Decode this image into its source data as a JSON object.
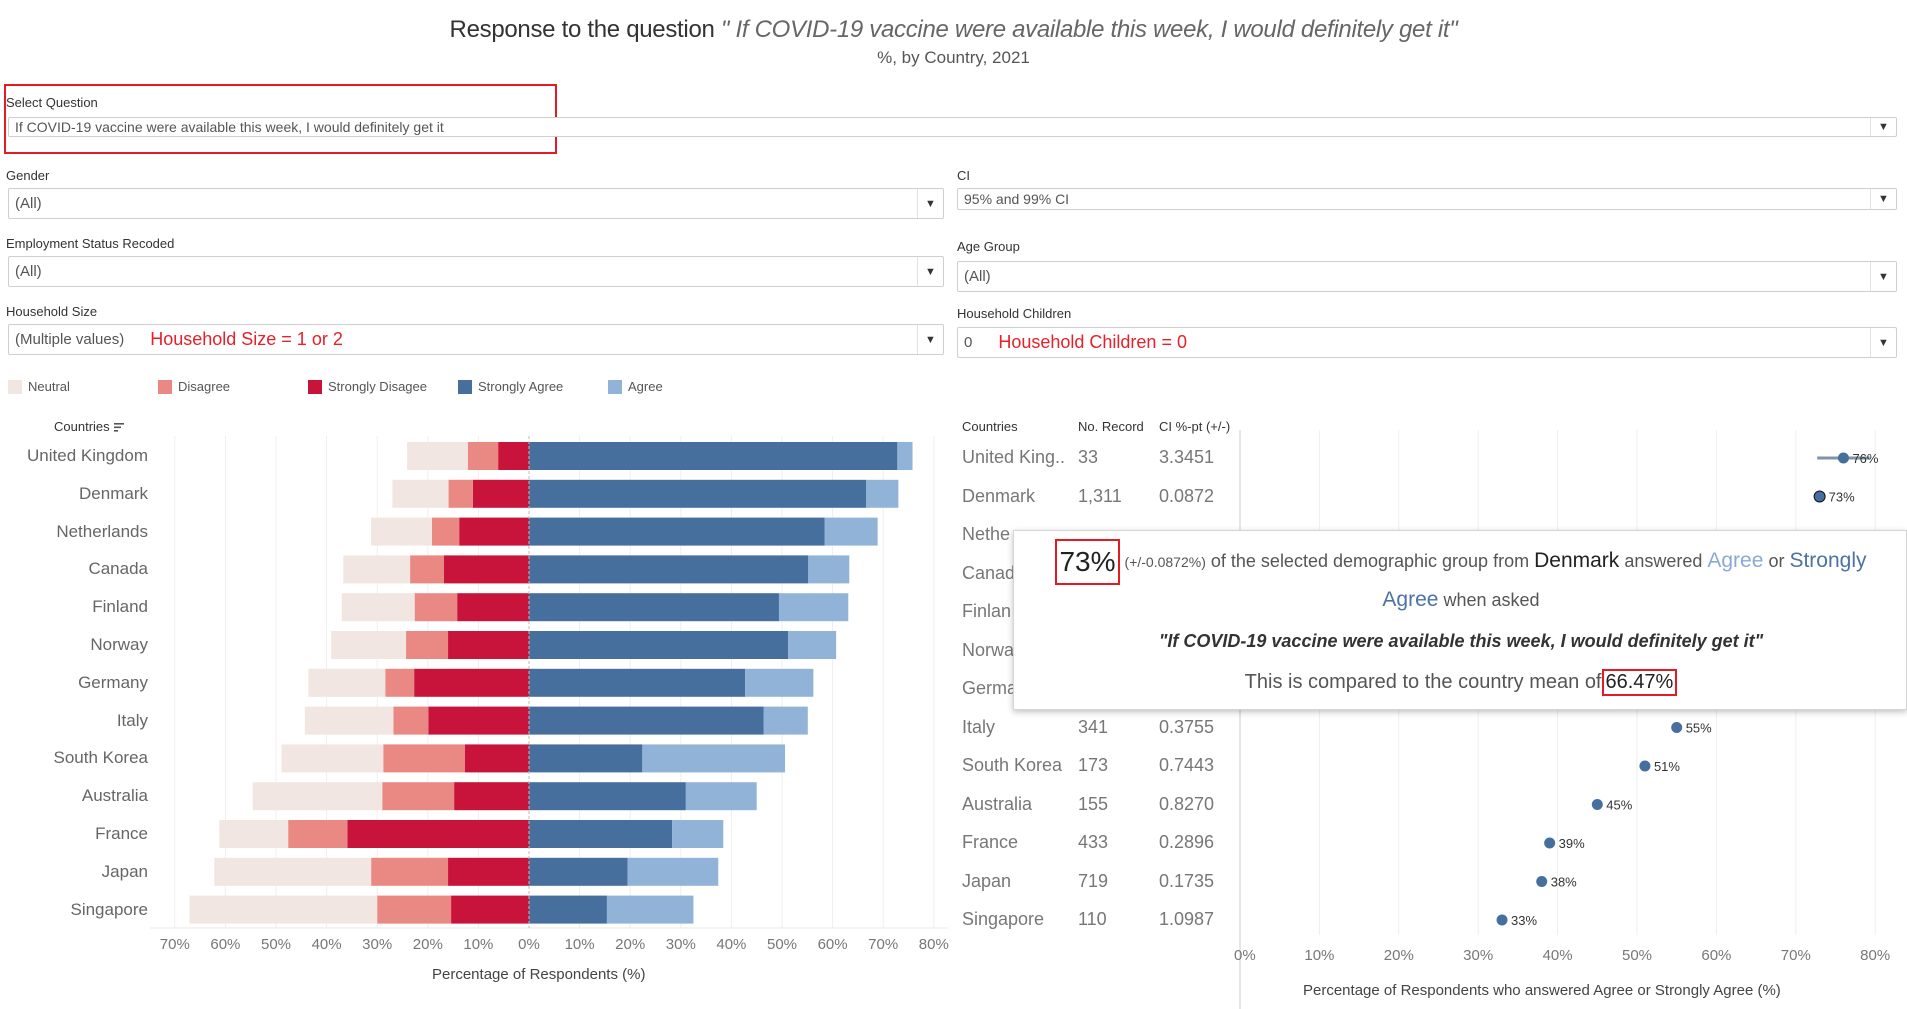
{
  "header": {
    "title_prefix": "Response to the question",
    "title_question": "\" If COVID-19 vaccine were available this week, I would definitely get it\"",
    "subtitle": "%, by Country, 2021"
  },
  "filters": {
    "select_question": {
      "label": "Select Question",
      "value": "If COVID-19 vaccine were available this week, I would definitely get it"
    },
    "gender": {
      "label": "Gender",
      "value": "(All)"
    },
    "ci": {
      "label": "CI",
      "value": "95% and 99% CI"
    },
    "employment": {
      "label": "Employment Status Recoded",
      "value": "(All)"
    },
    "age_group": {
      "label": "Age Group",
      "value": "(All)"
    },
    "household_size": {
      "label": "Household Size",
      "value": "(Multiple values)",
      "annotation": "Household Size = 1 or 2"
    },
    "household_children": {
      "label": "Household Children",
      "value": "0",
      "annotation": "Household Children = 0"
    },
    "dropdown_icon": "caret-down"
  },
  "legend": [
    {
      "label": "Neutral",
      "color": "#f1e6e2"
    },
    {
      "label": "Disagree",
      "color": "#ea8883"
    },
    {
      "label": "Strongly Disagee",
      "color": "#c8143a"
    },
    {
      "label": "Strongly Agree",
      "color": "#466f9d"
    },
    {
      "label": "Agree",
      "color": "#92b3d8"
    }
  ],
  "colors": {
    "accent_red": "#e21b24",
    "dot": "#466f9d",
    "agree_text": "#8aaad6",
    "strongly_agree_text": "#4c72a6"
  },
  "chart_data": [
    {
      "type": "bar",
      "subtype": "diverging-stacked",
      "title": "",
      "row_header": "Countries",
      "xlabel": "Percentage of Respondents (%)",
      "ylabel": "",
      "xlim": [
        -70,
        80
      ],
      "x_ticks": [
        "70%",
        "60%",
        "50%",
        "40%",
        "30%",
        "20%",
        "10%",
        "0%",
        "10%",
        "20%",
        "30%",
        "40%",
        "50%",
        "60%",
        "70%",
        "80%"
      ],
      "grid": true,
      "legend_position": "top-left",
      "categories": [
        "United Kingdom",
        "Denmark",
        "Netherlands",
        "Canada",
        "Finland",
        "Norway",
        "Germany",
        "Italy",
        "South Korea",
        "Australia",
        "France",
        "Japan",
        "Singapore"
      ],
      "series": [
        {
          "name": "Strongly Disagee",
          "side": "negative",
          "values": [
            6.1,
            11.1,
            13.8,
            16.8,
            14.2,
            16.0,
            22.7,
            19.9,
            12.7,
            14.8,
            35.9,
            16.0,
            15.4
          ]
        },
        {
          "name": "Disagree",
          "side": "negative",
          "values": [
            6.0,
            4.8,
            5.4,
            6.7,
            8.4,
            8.3,
            5.7,
            6.9,
            16.1,
            14.2,
            11.7,
            15.2,
            14.6
          ]
        },
        {
          "name": "Neutral",
          "side": "negative",
          "values": [
            12.0,
            11.1,
            12.0,
            13.2,
            14.4,
            14.8,
            15.2,
            17.5,
            20.1,
            25.6,
            13.6,
            31.0,
            37.1
          ]
        },
        {
          "name": "Strongly Agree",
          "side": "positive",
          "values": [
            72.8,
            66.6,
            58.4,
            55.2,
            49.4,
            51.2,
            42.7,
            46.4,
            22.4,
            31.0,
            28.3,
            19.5,
            15.4
          ]
        },
        {
          "name": "Agree",
          "side": "positive",
          "values": [
            3.0,
            6.4,
            10.5,
            8.1,
            13.7,
            9.5,
            13.5,
            8.7,
            28.2,
            14.0,
            10.1,
            17.9,
            17.1
          ]
        }
      ]
    },
    {
      "type": "scatter",
      "subtype": "dot-with-ci",
      "title": "",
      "xlabel": "Percentage of Respondents who answered Agree or Strongly Agree (%)",
      "xlim": [
        0,
        80
      ],
      "x_ticks": [
        "0%",
        "10%",
        "20%",
        "30%",
        "40%",
        "50%",
        "60%",
        "70%",
        "80%"
      ],
      "grid": true,
      "table_headers": [
        "Countries",
        "No. Record",
        "CI %-pt (+/-)"
      ],
      "rows": [
        {
          "country": "United King..",
          "records": "33",
          "ci": "3.3451",
          "value": 76,
          "label": "76%"
        },
        {
          "country": "Denmark",
          "records": "1,311",
          "ci": "0.0872",
          "value": 73,
          "label": "73%"
        },
        {
          "country": "Nethe",
          "records": "",
          "ci": "",
          "value": null,
          "label": ""
        },
        {
          "country": "Canad",
          "records": "",
          "ci": "",
          "value": null,
          "label": ""
        },
        {
          "country": "Finlan",
          "records": "",
          "ci": "",
          "value": null,
          "label": ""
        },
        {
          "country": "Norwa",
          "records": "",
          "ci": "",
          "value": null,
          "label": ""
        },
        {
          "country": "Germa",
          "records": "",
          "ci": "",
          "value": null,
          "label": ""
        },
        {
          "country": "Italy",
          "records": "341",
          "ci": "0.3755",
          "value": 55,
          "label": "55%"
        },
        {
          "country": "South Korea",
          "records": "173",
          "ci": "0.7443",
          "value": 51,
          "label": "51%"
        },
        {
          "country": "Australia",
          "records": "155",
          "ci": "0.8270",
          "value": 45,
          "label": "45%"
        },
        {
          "country": "France",
          "records": "433",
          "ci": "0.2896",
          "value": 39,
          "label": "39%"
        },
        {
          "country": "Japan",
          "records": "719",
          "ci": "0.1735",
          "value": 38,
          "label": "38%"
        },
        {
          "country": "Singapore",
          "records": "110",
          "ci": "1.0987",
          "value": 33,
          "label": "33%"
        }
      ]
    }
  ],
  "tooltip": {
    "big_value": "73%",
    "ci_text": "(+/-0.0872%)",
    "text1": "of the selected demographic group from",
    "country": "Denmark",
    "text2": "answered",
    "agree": "Agree",
    "or": "or",
    "strongly": "Strongly",
    "agree2": "Agree",
    "text3": "when asked",
    "question": "\"If COVID-19 vaccine were available this week, I would definitely get it\"",
    "compare_text": "This is compared to the country mean of",
    "mean_value": "66.47%"
  }
}
